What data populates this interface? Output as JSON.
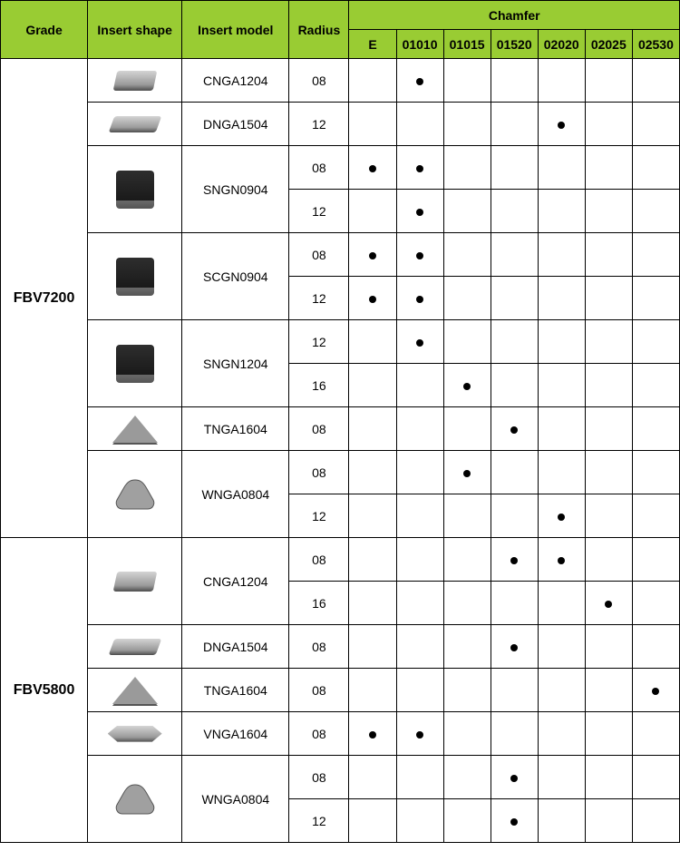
{
  "headers": {
    "grade": "Grade",
    "shape": "Insert shape",
    "model": "Insert model",
    "radius": "Radius",
    "chamfer_group": "Chamfer",
    "chamfer": [
      "E",
      "01010",
      "01015",
      "01520",
      "02020",
      "02025",
      "02530"
    ]
  },
  "colors": {
    "header_bg": "#99cc33",
    "border": "#000000",
    "dot": "#000000"
  },
  "groups": [
    {
      "grade": "FBV7200",
      "row_span": 11,
      "blocks": [
        {
          "shape": "diamond80",
          "shape_rows": 1,
          "model": "CNGA1204",
          "model_rows": 1,
          "rows": [
            {
              "radius": "08",
              "marks": [
                "",
                "●",
                "",
                "",
                "",
                "",
                ""
              ]
            }
          ]
        },
        {
          "shape": "diamond55",
          "shape_rows": 1,
          "model": "DNGA1504",
          "model_rows": 1,
          "rows": [
            {
              "radius": "12",
              "marks": [
                "",
                "",
                "",
                "",
                "●",
                "",
                ""
              ]
            }
          ]
        },
        {
          "shape": "square-dark",
          "shape_rows": 2,
          "model": "SNGN0904",
          "model_rows": 2,
          "rows": [
            {
              "radius": "08",
              "marks": [
                "●",
                "●",
                "",
                "",
                "",
                "",
                ""
              ]
            },
            {
              "radius": "12",
              "marks": [
                "",
                "●",
                "",
                "",
                "",
                "",
                ""
              ]
            }
          ]
        },
        {
          "shape": "square-dark",
          "shape_rows": 2,
          "model": "SCGN0904",
          "model_rows": 2,
          "rows": [
            {
              "radius": "08",
              "marks": [
                "●",
                "●",
                "",
                "",
                "",
                "",
                ""
              ]
            },
            {
              "radius": "12",
              "marks": [
                "●",
                "●",
                "",
                "",
                "",
                "",
                ""
              ]
            }
          ]
        },
        {
          "shape": "square-dark",
          "shape_rows": 2,
          "model": "SNGN1204",
          "model_rows": 2,
          "rows": [
            {
              "radius": "12",
              "marks": [
                "",
                "●",
                "",
                "",
                "",
                "",
                ""
              ]
            },
            {
              "radius": "16",
              "marks": [
                "",
                "",
                "●",
                "",
                "",
                "",
                ""
              ]
            }
          ]
        },
        {
          "shape": "triangle",
          "shape_rows": 1,
          "model": "TNGA1604",
          "model_rows": 1,
          "rows": [
            {
              "radius": "08",
              "marks": [
                "",
                "",
                "",
                "●",
                "",
                "",
                ""
              ]
            }
          ]
        },
        {
          "shape": "trigon",
          "shape_rows": 2,
          "model": "WNGA0804",
          "model_rows": 2,
          "rows": [
            {
              "radius": "08",
              "marks": [
                "",
                "",
                "●",
                "",
                "",
                "",
                ""
              ]
            },
            {
              "radius": "12",
              "marks": [
                "",
                "",
                "",
                "",
                "●",
                "",
                ""
              ]
            }
          ]
        }
      ]
    },
    {
      "grade": "FBV5800",
      "row_span": 7,
      "blocks": [
        {
          "shape": "diamond80",
          "shape_rows": 2,
          "model": "CNGA1204",
          "model_rows": 2,
          "rows": [
            {
              "radius": "08",
              "marks": [
                "",
                "",
                "",
                "●",
                "●",
                "",
                ""
              ]
            },
            {
              "radius": "16",
              "marks": [
                "",
                "",
                "",
                "",
                "",
                "●",
                ""
              ]
            }
          ]
        },
        {
          "shape": "diamond55",
          "shape_rows": 1,
          "model": "DNGA1504",
          "model_rows": 1,
          "rows": [
            {
              "radius": "08",
              "marks": [
                "",
                "",
                "",
                "●",
                "",
                "",
                ""
              ]
            }
          ]
        },
        {
          "shape": "triangle",
          "shape_rows": 1,
          "model": "TNGA1604",
          "model_rows": 1,
          "rows": [
            {
              "radius": "08",
              "marks": [
                "",
                "",
                "",
                "",
                "",
                "",
                "●"
              ]
            }
          ]
        },
        {
          "shape": "vshape",
          "shape_rows": 1,
          "model": "VNGA1604",
          "model_rows": 1,
          "rows": [
            {
              "radius": "08",
              "marks": [
                "●",
                "●",
                "",
                "",
                "",
                "",
                ""
              ]
            }
          ]
        },
        {
          "shape": "trigon",
          "shape_rows": 2,
          "model": "WNGA0804",
          "model_rows": 2,
          "rows": [
            {
              "radius": "08",
              "marks": [
                "",
                "",
                "",
                "●",
                "",
                "",
                ""
              ]
            },
            {
              "radius": "12",
              "marks": [
                "",
                "",
                "",
                "●",
                "",
                "",
                ""
              ]
            }
          ]
        }
      ]
    }
  ]
}
